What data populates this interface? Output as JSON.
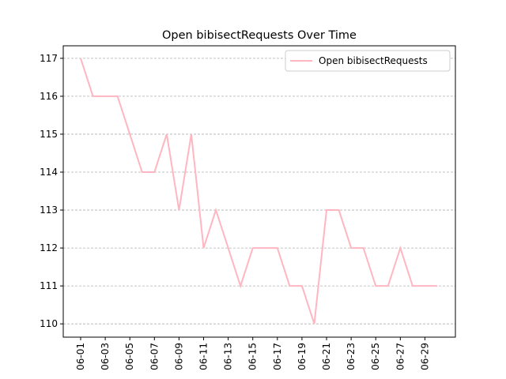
{
  "chart_data": {
    "type": "line",
    "title": "Open bibisectRequests Over Time",
    "categories": [
      "06-01",
      null,
      "06-03",
      null,
      "06-05",
      null,
      "06-07",
      null,
      "06-09",
      null,
      "06-11",
      null,
      "06-13",
      null,
      "06-15",
      null,
      "06-17",
      null,
      "06-19",
      null,
      "06-21",
      null,
      "06-23",
      null,
      "06-25",
      null,
      "06-27",
      null,
      "06-29",
      null
    ],
    "series": [
      {
        "name": "Open bibisectRequests",
        "color": "#ffb6c1",
        "values": [
          117,
          116,
          116,
          116,
          115,
          114,
          114,
          115,
          113,
          115,
          112,
          113,
          112,
          111,
          112,
          112,
          112,
          111,
          111,
          110,
          113,
          113,
          112,
          112,
          111,
          111,
          112,
          111,
          111,
          111
        ]
      }
    ],
    "ylim": [
      109.65,
      117.33
    ],
    "yticks": [
      110,
      111,
      112,
      113,
      114,
      115,
      116,
      117
    ],
    "grid": true,
    "legend": "upper right"
  }
}
